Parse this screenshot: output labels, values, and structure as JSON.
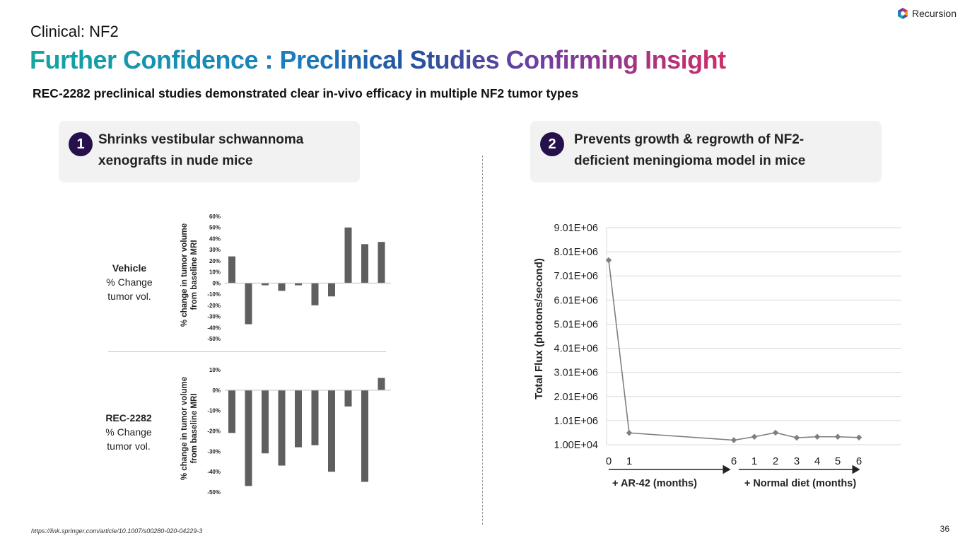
{
  "brand": {
    "name": "Recursion"
  },
  "kicker": "Clinical: NF2",
  "title": "Further Confidence : Preclinical Studies Confirming Insight",
  "subtitle": "REC-2282 preclinical studies demonstrated clear in-vivo efficacy in multiple NF2 tumor types",
  "cards": [
    {
      "number": "1",
      "line1": "Shrinks vestibular schwannoma",
      "line2": "xenografts in nude mice"
    },
    {
      "number": "2",
      "line1": "Prevents growth & regrowth of NF2-",
      "line2": "deficient meningioma model in mice"
    }
  ],
  "rows": [
    {
      "name": "Vehicle",
      "desc1": "% Change",
      "desc2": "tumor vol."
    },
    {
      "name": "REC-2282",
      "desc1": "% Change",
      "desc2": "tumor vol."
    }
  ],
  "footer": "https://link.springer.com/article/10.1007/s00280-020-04229-3",
  "page_number": "36",
  "colors": {
    "bar": "#5f5f5f",
    "line": "#7f7f7f",
    "badge": "#26114d",
    "card_bg": "#f2f2f2"
  },
  "chart_data": [
    {
      "type": "bar",
      "ylabel_line1": "% change in tumor volume",
      "ylabel_line2": "from baseline MRI",
      "yticks": [
        "60%",
        "50%",
        "40%",
        "30%",
        "20%",
        "10%",
        "0%",
        "-10%",
        "-20%",
        "-30%",
        "-40%",
        "-50%"
      ],
      "ylim": [
        -50,
        60
      ],
      "values": [
        24,
        -37,
        -2,
        -7,
        -2,
        -20,
        -12,
        50,
        35,
        37
      ]
    },
    {
      "type": "bar",
      "ylabel_line1": "% change in tumor volume",
      "ylabel_line2": "from baseline MRI",
      "yticks": [
        "10%",
        "0%",
        "-10%",
        "-20%",
        "-30%",
        "-40%",
        "-50%"
      ],
      "ylim": [
        -50,
        10
      ],
      "values": [
        -21,
        -47,
        -31,
        -37,
        -28,
        -27,
        -40,
        -8,
        -45,
        6
      ]
    },
    {
      "type": "line",
      "ylabel": "Total Flux (photons/second)",
      "yticks": [
        "9.01E+06",
        "8.01E+06",
        "7.01E+06",
        "6.01E+06",
        "5.01E+06",
        "4.01E+06",
        "3.01E+06",
        "2.01E+06",
        "1.01E+06",
        "1.00E+04"
      ],
      "ylim": [
        10000,
        9010000
      ],
      "xticks": [
        "0",
        "1",
        "6",
        "1",
        "2",
        "3",
        "4",
        "5",
        "6"
      ],
      "x_groups": [
        "+ AR-42 (months)",
        "+ Normal diet (months)"
      ],
      "points": [
        {
          "x": "0",
          "y": 7660000
        },
        {
          "x": "1",
          "y": 500000
        },
        {
          "x": "6",
          "y": 200000
        },
        {
          "x": "1",
          "y": 340000
        },
        {
          "x": "2",
          "y": 510000
        },
        {
          "x": "3",
          "y": 300000
        },
        {
          "x": "4",
          "y": 340000
        },
        {
          "x": "5",
          "y": 340000
        },
        {
          "x": "6",
          "y": 310000
        }
      ]
    }
  ]
}
